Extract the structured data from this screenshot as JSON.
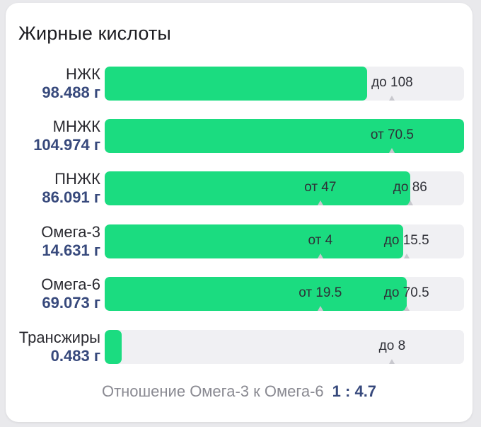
{
  "title": "Жирные кислоты",
  "colors": {
    "fill": "#1bdc80",
    "track": "#f0f0f3",
    "amount": "#37497c"
  },
  "rows": [
    {
      "name": "НЖК",
      "amount": "98.488 г",
      "fill_fraction": 0.73,
      "markers": [
        {
          "label": "до 108",
          "pos": 0.8
        }
      ]
    },
    {
      "name": "МНЖК",
      "amount": "104.974 г",
      "fill_fraction": 1.0,
      "markers": [
        {
          "label": "от 70.5",
          "pos": 0.8
        }
      ]
    },
    {
      "name": "ПНЖК",
      "amount": "86.091 г",
      "fill_fraction": 0.85,
      "markers": [
        {
          "label": "от 47",
          "pos": 0.6
        },
        {
          "label": "до 86",
          "pos": 0.85
        }
      ]
    },
    {
      "name": "Омега-3",
      "amount": "14.631 г",
      "fill_fraction": 0.83,
      "markers": [
        {
          "label": "от 4",
          "pos": 0.6
        },
        {
          "label": "до 15.5",
          "pos": 0.84
        }
      ]
    },
    {
      "name": "Омега-6",
      "amount": "69.073 г",
      "fill_fraction": 0.84,
      "markers": [
        {
          "label": "от 19.5",
          "pos": 0.6
        },
        {
          "label": "до 70.5",
          "pos": 0.84
        }
      ]
    },
    {
      "name": "Трансжиры",
      "amount": "0.483 г",
      "fill_fraction": 0.047,
      "markers": [
        {
          "label": "до 8",
          "pos": 0.8
        }
      ]
    }
  ],
  "ratio": {
    "label": "Отношение Омега-3 к Омега-6",
    "value": "1 : 4.7"
  }
}
